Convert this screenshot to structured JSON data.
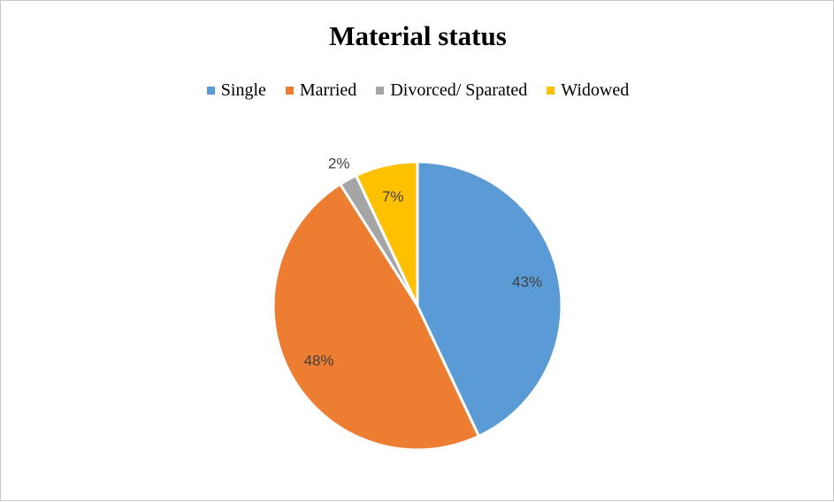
{
  "chart_data": {
    "type": "pie",
    "title": "Material status",
    "legend_position": "top",
    "categories": [
      "Single",
      "Married",
      "Divorced/ Sparated",
      "Widowed"
    ],
    "values": [
      43,
      48,
      2,
      7
    ],
    "labels": [
      "43%",
      "48%",
      "2%",
      "7%"
    ],
    "colors": [
      "#5b9bd5",
      "#ed7d31",
      "#a5a5a5",
      "#ffc000"
    ],
    "start_angle_deg": 0,
    "direction": "clockwise"
  }
}
